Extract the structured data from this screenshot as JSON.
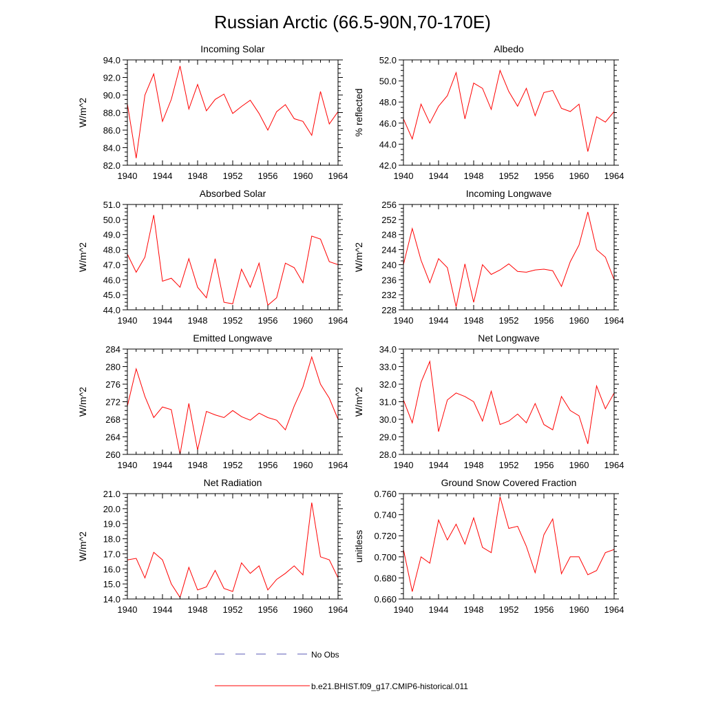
{
  "figure": {
    "title": "Russian Arctic (66.5-90N,70-170E)",
    "line_color": "#ff0000",
    "obs_color": "#5a5ab4"
  },
  "legend": {
    "obs_label": "No Obs",
    "model_label": "b.e21.BHIST.f09_g17.CMIP6-historical.011"
  },
  "chart_data": [
    {
      "type": "line",
      "title": "Incoming Solar",
      "ylabel": "W/m^2",
      "xlim": [
        1940,
        1964
      ],
      "ylim": [
        82,
        94
      ],
      "xticks": [
        1940,
        1944,
        1948,
        1952,
        1956,
        1960,
        1964
      ],
      "yticks": [
        82,
        84,
        86,
        88,
        90,
        92,
        94
      ],
      "ytick_labels": [
        "82.0",
        "84.0",
        "86.0",
        "88.0",
        "90.0",
        "92.0",
        "94.0"
      ],
      "x": [
        1940,
        1941,
        1942,
        1943,
        1944,
        1945,
        1946,
        1947,
        1948,
        1949,
        1950,
        1951,
        1952,
        1953,
        1954,
        1955,
        1956,
        1957,
        1958,
        1959,
        1960,
        1961,
        1962,
        1963,
        1964
      ],
      "series": [
        {
          "values": [
            89.0,
            82.8,
            90.0,
            92.4,
            87.0,
            89.5,
            93.3,
            88.4,
            91.2,
            88.2,
            89.5,
            90.1,
            87.9,
            88.7,
            89.4,
            87.9,
            86.0,
            88.1,
            88.9,
            87.3,
            87.0,
            85.4,
            90.4,
            86.7,
            88.1
          ]
        }
      ]
    },
    {
      "type": "line",
      "title": "Albedo",
      "ylabel": "% reflected",
      "xlim": [
        1940,
        1964
      ],
      "ylim": [
        42,
        52
      ],
      "xticks": [
        1940,
        1944,
        1948,
        1952,
        1956,
        1960,
        1964
      ],
      "yticks": [
        42,
        44,
        46,
        48,
        50,
        52
      ],
      "ytick_labels": [
        "42.0",
        "44.0",
        "46.0",
        "48.0",
        "50.0",
        "52.0"
      ],
      "x": [
        1940,
        1941,
        1942,
        1943,
        1944,
        1945,
        1946,
        1947,
        1948,
        1949,
        1950,
        1951,
        1952,
        1953,
        1954,
        1955,
        1956,
        1957,
        1958,
        1959,
        1960,
        1961,
        1962,
        1963,
        1964
      ],
      "series": [
        {
          "values": [
            46.4,
            44.5,
            47.8,
            46.0,
            47.6,
            48.6,
            50.8,
            46.4,
            49.8,
            49.3,
            47.3,
            51.0,
            49.0,
            47.6,
            49.3,
            46.7,
            48.9,
            49.1,
            47.4,
            47.1,
            47.8,
            43.3,
            46.6,
            46.1,
            47.1
          ]
        }
      ]
    },
    {
      "type": "line",
      "title": "Absorbed Solar",
      "ylabel": "W/m^2",
      "xlim": [
        1940,
        1964
      ],
      "ylim": [
        44,
        51
      ],
      "xticks": [
        1940,
        1944,
        1948,
        1952,
        1956,
        1960,
        1964
      ],
      "yticks": [
        44,
        45,
        46,
        47,
        48,
        49,
        50,
        51
      ],
      "ytick_labels": [
        "44.0",
        "45.0",
        "46.0",
        "47.0",
        "48.0",
        "49.0",
        "50.0",
        "51.0"
      ],
      "x": [
        1940,
        1941,
        1942,
        1943,
        1944,
        1945,
        1946,
        1947,
        1948,
        1949,
        1950,
        1951,
        1952,
        1953,
        1954,
        1955,
        1956,
        1957,
        1958,
        1959,
        1960,
        1961,
        1962,
        1963,
        1964
      ],
      "series": [
        {
          "values": [
            47.7,
            46.5,
            47.5,
            50.3,
            45.9,
            46.1,
            45.5,
            47.4,
            45.5,
            44.8,
            47.4,
            44.5,
            44.4,
            46.7,
            45.5,
            47.1,
            44.3,
            44.8,
            47.1,
            46.8,
            45.8,
            48.9,
            48.7,
            47.2,
            47.0
          ]
        }
      ]
    },
    {
      "type": "line",
      "title": "Incoming Longwave",
      "ylabel": "W/m^2",
      "xlim": [
        1940,
        1964
      ],
      "ylim": [
        228,
        256
      ],
      "xticks": [
        1940,
        1944,
        1948,
        1952,
        1956,
        1960,
        1964
      ],
      "yticks": [
        228,
        232,
        236,
        240,
        244,
        248,
        252,
        256
      ],
      "ytick_labels": [
        "228",
        "232",
        "236",
        "240",
        "244",
        "248",
        "252",
        "256"
      ],
      "x": [
        1940,
        1941,
        1942,
        1943,
        1944,
        1945,
        1946,
        1947,
        1948,
        1949,
        1950,
        1951,
        1952,
        1953,
        1954,
        1955,
        1956,
        1957,
        1958,
        1959,
        1960,
        1961,
        1962,
        1963,
        1964
      ],
      "series": [
        {
          "values": [
            240.0,
            249.6,
            241.2,
            235.2,
            241.6,
            239.2,
            228.8,
            240.2,
            230.0,
            240.0,
            237.4,
            238.6,
            240.2,
            238.2,
            238.0,
            238.6,
            238.8,
            238.4,
            234.2,
            240.8,
            245.2,
            254.0,
            244.0,
            242.0,
            236.0
          ]
        }
      ]
    },
    {
      "type": "line",
      "title": "Emitted Longwave",
      "ylabel": "W/m^2",
      "xlim": [
        1940,
        1964
      ],
      "ylim": [
        260,
        284
      ],
      "xticks": [
        1940,
        1944,
        1948,
        1952,
        1956,
        1960,
        1964
      ],
      "yticks": [
        260,
        264,
        268,
        272,
        276,
        280,
        284
      ],
      "ytick_labels": [
        "260",
        "264",
        "268",
        "272",
        "276",
        "280",
        "284"
      ],
      "x": [
        1940,
        1941,
        1942,
        1943,
        1944,
        1945,
        1946,
        1947,
        1948,
        1949,
        1950,
        1951,
        1952,
        1953,
        1954,
        1955,
        1956,
        1957,
        1958,
        1959,
        1960,
        1961,
        1962,
        1963,
        1964
      ],
      "series": [
        {
          "values": [
            271.0,
            279.5,
            273.2,
            268.4,
            270.8,
            270.2,
            260.0,
            271.6,
            261.0,
            269.8,
            269.0,
            268.4,
            270.0,
            268.6,
            267.8,
            269.4,
            268.4,
            267.8,
            265.6,
            271.0,
            275.4,
            282.2,
            276.0,
            272.8,
            268.0
          ]
        }
      ]
    },
    {
      "type": "line",
      "title": "Net Longwave",
      "ylabel": "W/m^2",
      "xlim": [
        1940,
        1964
      ],
      "ylim": [
        28,
        34
      ],
      "xticks": [
        1940,
        1944,
        1948,
        1952,
        1956,
        1960,
        1964
      ],
      "yticks": [
        28,
        29,
        30,
        31,
        32,
        33,
        34
      ],
      "ytick_labels": [
        "28.0",
        "29.0",
        "30.0",
        "31.0",
        "32.0",
        "33.0",
        "34.0"
      ],
      "x": [
        1940,
        1941,
        1942,
        1943,
        1944,
        1945,
        1946,
        1947,
        1948,
        1949,
        1950,
        1951,
        1952,
        1953,
        1954,
        1955,
        1956,
        1957,
        1958,
        1959,
        1960,
        1961,
        1962,
        1963,
        1964
      ],
      "series": [
        {
          "values": [
            31.1,
            29.8,
            32.1,
            33.3,
            29.3,
            31.1,
            31.5,
            31.3,
            31.0,
            29.9,
            31.6,
            29.7,
            29.9,
            30.3,
            29.8,
            30.9,
            29.7,
            29.4,
            31.3,
            30.5,
            30.2,
            28.6,
            31.9,
            30.6,
            31.5
          ]
        }
      ]
    },
    {
      "type": "line",
      "title": "Net Radiation",
      "ylabel": "W/m^2",
      "xlim": [
        1940,
        1964
      ],
      "ylim": [
        14,
        21
      ],
      "xticks": [
        1940,
        1944,
        1948,
        1952,
        1956,
        1960,
        1964
      ],
      "yticks": [
        14,
        15,
        16,
        17,
        18,
        19,
        20,
        21
      ],
      "ytick_labels": [
        "14.0",
        "15.0",
        "16.0",
        "17.0",
        "18.0",
        "19.0",
        "20.0",
        "21.0"
      ],
      "x": [
        1940,
        1941,
        1942,
        1943,
        1944,
        1945,
        1946,
        1947,
        1948,
        1949,
        1950,
        1951,
        1952,
        1953,
        1954,
        1955,
        1956,
        1957,
        1958,
        1959,
        1960,
        1961,
        1962,
        1963,
        1964
      ],
      "series": [
        {
          "values": [
            16.6,
            16.7,
            15.4,
            17.1,
            16.6,
            15.0,
            14.1,
            16.1,
            14.6,
            14.8,
            15.9,
            14.7,
            14.5,
            16.4,
            15.7,
            16.2,
            14.6,
            15.3,
            15.7,
            16.2,
            15.6,
            20.4,
            16.8,
            16.6,
            15.4
          ]
        }
      ]
    },
    {
      "type": "line",
      "title": "Ground Snow Covered Fraction",
      "ylabel": "unitless",
      "xlim": [
        1940,
        1964
      ],
      "ylim": [
        0.66,
        0.76
      ],
      "xticks": [
        1940,
        1944,
        1948,
        1952,
        1956,
        1960,
        1964
      ],
      "yticks": [
        0.66,
        0.68,
        0.7,
        0.72,
        0.74,
        0.76
      ],
      "ytick_labels": [
        "0.660",
        "0.680",
        "0.700",
        "0.720",
        "0.740",
        "0.760"
      ],
      "x": [
        1940,
        1941,
        1942,
        1943,
        1944,
        1945,
        1946,
        1947,
        1948,
        1949,
        1950,
        1951,
        1952,
        1953,
        1954,
        1955,
        1956,
        1957,
        1958,
        1959,
        1960,
        1961,
        1962,
        1963,
        1964
      ],
      "series": [
        {
          "values": [
            0.707,
            0.667,
            0.7,
            0.694,
            0.735,
            0.716,
            0.731,
            0.712,
            0.737,
            0.709,
            0.704,
            0.757,
            0.727,
            0.729,
            0.71,
            0.685,
            0.721,
            0.736,
            0.684,
            0.7,
            0.7,
            0.683,
            0.687,
            0.704,
            0.707
          ]
        }
      ]
    }
  ]
}
